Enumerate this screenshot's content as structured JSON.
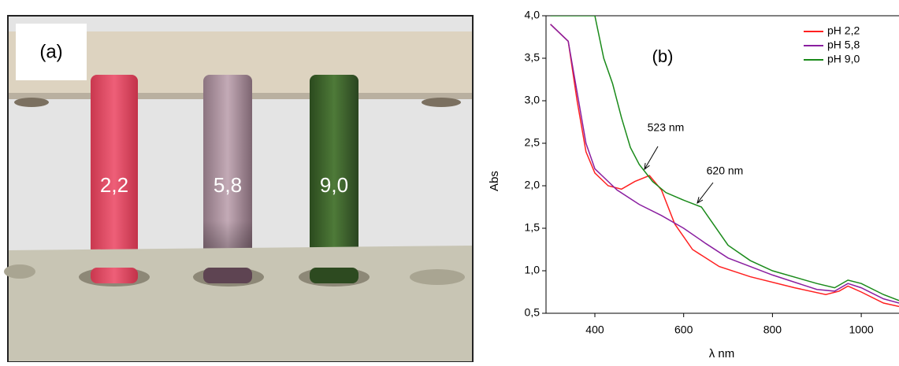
{
  "photo": {
    "panel_label": "(a)",
    "tube_labels": [
      "2,2",
      "5,8",
      "9,0"
    ]
  },
  "chart_data": {
    "type": "line",
    "panel_label": "(b)",
    "x_label": "λ nm",
    "y_label": "Abs",
    "xlim": [
      290,
      1085
    ],
    "xticks": [
      400,
      600,
      800,
      1000
    ],
    "ylim": [
      0.5,
      4.0
    ],
    "yticks": [
      {
        "value": 0.5,
        "label": "0,5"
      },
      {
        "value": 1.0,
        "label": "1,0"
      },
      {
        "value": 1.5,
        "label": "1,5"
      },
      {
        "value": 2.0,
        "label": "2,0"
      },
      {
        "value": 2.5,
        "label": "2,5"
      },
      {
        "value": 3.0,
        "label": "3,0"
      },
      {
        "value": 3.5,
        "label": "3,5"
      },
      {
        "value": 4.0,
        "label": "4,0"
      }
    ],
    "legend": "upper right",
    "annotations": [
      "523 nm",
      "620 nm"
    ],
    "series": [
      {
        "name": "pH 2,2",
        "color": "#ff2020",
        "x": [
          300,
          340,
          360,
          380,
          400,
          430,
          460,
          490,
          523,
          550,
          580,
          620,
          680,
          750,
          850,
          920,
          950,
          970,
          1000,
          1050,
          1085
        ],
        "values": [
          3.9,
          3.7,
          3.0,
          2.4,
          2.15,
          2.0,
          1.96,
          2.05,
          2.12,
          1.95,
          1.55,
          1.25,
          1.05,
          0.93,
          0.8,
          0.72,
          0.76,
          0.82,
          0.75,
          0.62,
          0.58
        ]
      },
      {
        "name": "pH 5,8",
        "color": "#8a1fa0",
        "x": [
          300,
          340,
          360,
          380,
          400,
          450,
          500,
          550,
          600,
          650,
          700,
          800,
          900,
          940,
          970,
          1000,
          1050,
          1085
        ],
        "values": [
          3.9,
          3.7,
          3.1,
          2.5,
          2.2,
          1.95,
          1.78,
          1.65,
          1.5,
          1.32,
          1.15,
          0.95,
          0.78,
          0.76,
          0.85,
          0.8,
          0.67,
          0.62
        ]
      },
      {
        "name": "pH 9,0",
        "color": "#1a8a1a",
        "x": [
          300,
          400,
          420,
          440,
          460,
          480,
          500,
          530,
          560,
          600,
          640,
          660,
          700,
          750,
          800,
          900,
          940,
          970,
          1000,
          1050,
          1085
        ],
        "values": [
          4.0,
          4.0,
          3.5,
          3.2,
          2.8,
          2.45,
          2.25,
          2.05,
          1.92,
          1.83,
          1.75,
          1.6,
          1.3,
          1.12,
          1.0,
          0.85,
          0.8,
          0.89,
          0.85,
          0.72,
          0.65
        ]
      }
    ]
  }
}
